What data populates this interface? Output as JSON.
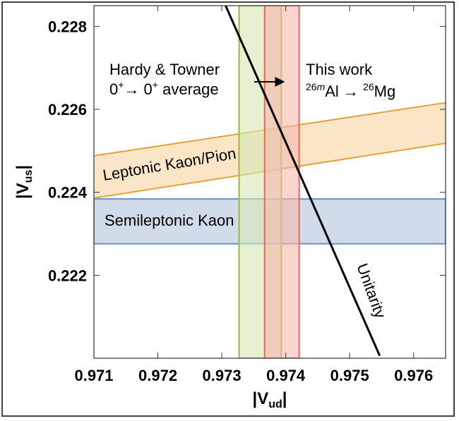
{
  "chart_data": {
    "type": "line",
    "xlabel": {
      "main": "|V",
      "sub": "ud",
      "end": "|"
    },
    "ylabel": {
      "main": "|V",
      "sub": "us",
      "end": "|"
    },
    "xlim": [
      0.971,
      0.9765
    ],
    "ylim": [
      0.22,
      0.2285
    ],
    "x_ticks": [
      0.971,
      0.972,
      0.973,
      0.974,
      0.975,
      0.976
    ],
    "x_tick_labels": [
      "0.971",
      "0.972",
      "0.973",
      "0.974",
      "0.975",
      "0.976"
    ],
    "y_ticks": [
      0.222,
      0.224,
      0.226,
      0.228
    ],
    "y_tick_labels": [
      "0.222",
      "0.224",
      "0.226",
      "0.228"
    ],
    "grid": false,
    "vertical_bands": [
      {
        "name": "Hardy & Towner 0+ → 0+ average",
        "x_range": [
          0.97327,
          0.97393
        ],
        "fill": "#d6e7b3",
        "stroke": "#8dbd3c"
      },
      {
        "name": "This work 26mAl → 26Mg",
        "x_range": [
          0.97367,
          0.97421
        ],
        "fill": "#f6b8ac",
        "stroke": "#e36a55"
      }
    ],
    "horizontal_bands": [
      {
        "name": "Semileptonic Kaon",
        "y_range": [
          0.22276,
          0.22384
        ],
        "fill": "#ccd8e8",
        "stroke": "#6a8fc6"
      }
    ],
    "sloped_bands": [
      {
        "name": "Leptonic Kaon/Pion",
        "lower": {
          "x": [
            0.971,
            0.9765
          ],
          "y": [
            0.22386,
            0.22518
          ]
        },
        "upper": {
          "x": [
            0.971,
            0.9765
          ],
          "y": [
            0.22488,
            0.22616
          ]
        },
        "fill": "#f9e1bd",
        "stroke": "#e2a23a"
      }
    ],
    "series": [
      {
        "name": "Unitarity",
        "x": [
          0.97306,
          0.97547
        ],
        "y": [
          0.2285,
          0.22006
        ],
        "color": "#000000"
      }
    ],
    "annotations": {
      "hardy": {
        "line1": "Hardy & Towner",
        "line2_a": "0",
        "line2_a_sup": "+",
        "line2_b": "→ 0",
        "line2_b_sup": "+",
        "line2_c": " average"
      },
      "this_work": {
        "line1": "This work",
        "line2_pre_sup": "26",
        "line2_pre_sup_m": "m",
        "line2_mid": "Al → ",
        "line2_sup2": "26",
        "line2_end": "Mg"
      },
      "leptonic": "Leptonic Kaon/Pion",
      "semileptonic": "Semileptonic Kaon",
      "unitarity": "Unitarity"
    }
  }
}
